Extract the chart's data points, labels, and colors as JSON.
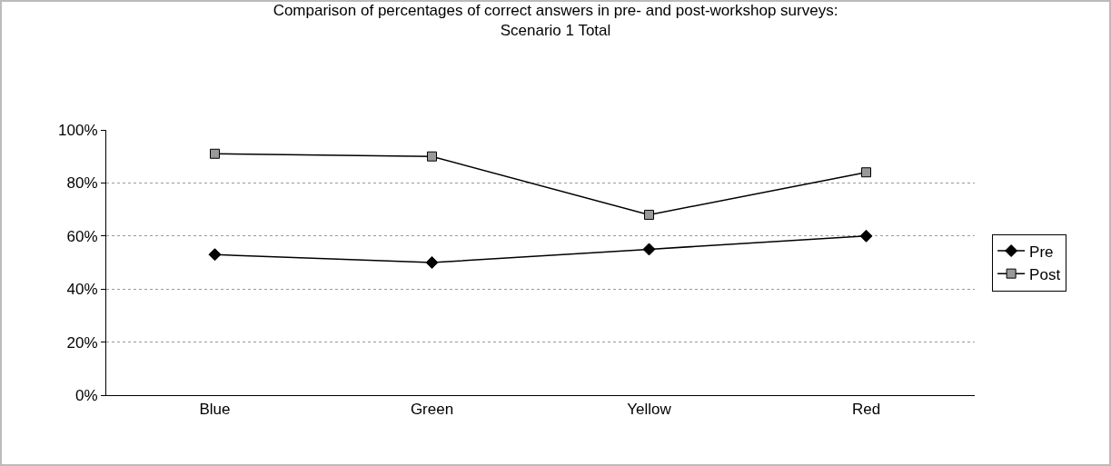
{
  "chart_data": {
    "type": "line",
    "title": "Comparison of percentages of correct answers in pre- and post-workshop surveys:\nScenario 1 Total",
    "categories": [
      "Blue",
      "Green",
      "Yellow",
      "Red"
    ],
    "series": [
      {
        "name": "Pre",
        "color": "#000000",
        "marker": "diamond",
        "values": [
          53,
          50,
          55,
          60
        ]
      },
      {
        "name": "Post",
        "color": "#999999",
        "marker": "square",
        "values": [
          91,
          90,
          68,
          84
        ]
      }
    ],
    "ylim": [
      0,
      100
    ],
    "yticks": [
      {
        "value": 0,
        "label": "0%"
      },
      {
        "value": 20,
        "label": "20%"
      },
      {
        "value": 40,
        "label": "40%"
      },
      {
        "value": 60,
        "label": "60%"
      },
      {
        "value": 80,
        "label": "80%"
      },
      {
        "value": 100,
        "label": "100%"
      }
    ],
    "grid": "y",
    "legend": "right",
    "line_style": "solid"
  }
}
